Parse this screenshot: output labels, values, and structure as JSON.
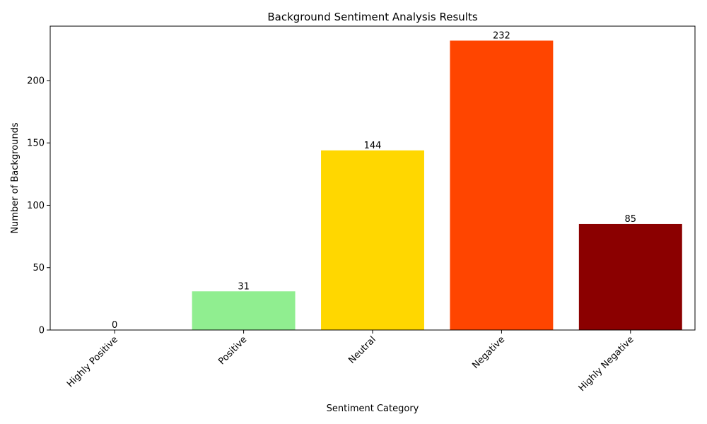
{
  "chart_data": {
    "type": "bar",
    "title": "Background Sentiment Analysis Results",
    "xlabel": "Sentiment Category",
    "ylabel": "Number of Backgrounds",
    "categories": [
      "Highly Positive",
      "Positive",
      "Neutral",
      "Negative",
      "Highly Negative"
    ],
    "values": [
      0,
      31,
      144,
      232,
      85
    ],
    "colors": [
      "#228b22",
      "#90ee90",
      "#ffd700",
      "#ff4500",
      "#8b0000"
    ],
    "ylim": [
      0,
      243.6
    ],
    "yticks": [
      0,
      50,
      100,
      150,
      200
    ],
    "grid": false,
    "data_labels": true
  }
}
